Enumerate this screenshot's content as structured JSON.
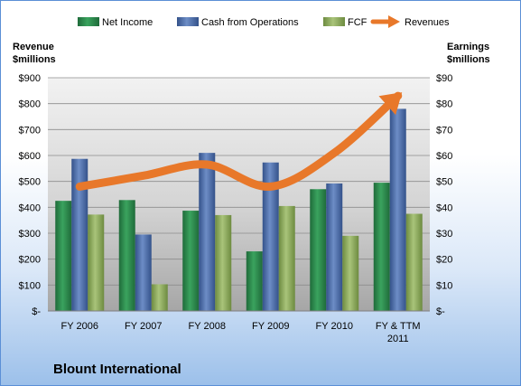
{
  "chart_data": {
    "type": "bar",
    "title": "Blount International",
    "categories": [
      [
        "FY 2006"
      ],
      [
        "FY 2007"
      ],
      [
        "FY 2008"
      ],
      [
        "FY 2009"
      ],
      [
        "FY 2010"
      ],
      [
        "FY & TTM",
        "2011"
      ]
    ],
    "left_axis": {
      "label_lines": [
        "Revenue",
        "$millions"
      ],
      "range": [
        0,
        900
      ],
      "step": 100,
      "tick_labels": [
        "$-",
        "$100",
        "$200",
        "$300",
        "$400",
        "$500",
        "$600",
        "$700",
        "$800",
        "$900"
      ]
    },
    "right_axis": {
      "label_lines": [
        "Earnings",
        "$millions"
      ],
      "range": [
        0,
        90
      ],
      "step": 10,
      "tick_labels": [
        "$-",
        "$10",
        "$20",
        "$30",
        "$40",
        "$50",
        "$60",
        "$70",
        "$80",
        "$90"
      ]
    },
    "series": [
      {
        "name": "Net Income",
        "type": "bar",
        "axis": "right",
        "color": "#2e8b4e",
        "values": [
          42.5,
          42.8,
          38.7,
          23.0,
          47.0,
          49.5
        ]
      },
      {
        "name": "Cash from Operations",
        "type": "bar",
        "axis": "right",
        "color": "#4f6fa8",
        "values": [
          58.7,
          29.5,
          61.0,
          57.3,
          49.2,
          78.0
        ]
      },
      {
        "name": "FCF",
        "type": "bar",
        "axis": "right",
        "color": "#8fae5c",
        "values": [
          37.2,
          10.3,
          37.0,
          40.5,
          29.0,
          37.5
        ]
      },
      {
        "name": "Revenues",
        "type": "line",
        "axis": "left",
        "color": "#e8782a",
        "values": [
          480,
          522,
          565,
          480,
          610,
          830
        ]
      }
    ],
    "legend_position": "top",
    "grid": true
  }
}
